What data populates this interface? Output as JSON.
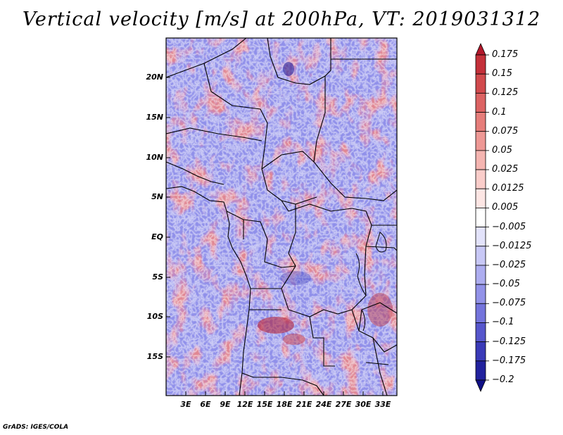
{
  "title": "Vertical velocity [m/s] at 200hPa, VT: 2019031312",
  "footer": "GrADS: IGES/COLA",
  "lat_labels": [
    "20N",
    "15N",
    "10N",
    "5N",
    "EQ",
    "5S",
    "10S",
    "15S"
  ],
  "lon_labels": [
    "3E",
    "6E",
    "9E",
    "12E",
    "15E",
    "18E",
    "21E",
    "24E",
    "27E",
    "30E",
    "33E"
  ],
  "colorbar": {
    "labels": [
      "0.175",
      "0.15",
      "0.125",
      "0.1",
      "0.075",
      "0.05",
      "0.025",
      "0.0125",
      "0.005",
      "−0.005",
      "−0.0125",
      "−0.025",
      "−0.05",
      "−0.075",
      "−0.1",
      "−0.125",
      "−0.175",
      "−0.2"
    ],
    "colors": [
      "#b2182b",
      "#c4303a",
      "#d14a4d",
      "#dc6363",
      "#e67d7a",
      "#ee9895",
      "#f5b5b1",
      "#facdca",
      "#fde6e4",
      "#ffffff",
      "#e3e3fb",
      "#c8c8f6",
      "#adadf0",
      "#9292e8",
      "#7474dc",
      "#5656cc",
      "#3a3ab8",
      "#22229e",
      "#0f0f85"
    ]
  },
  "map": {
    "extent": {
      "lon": [
        0,
        35
      ],
      "lat": [
        -20,
        25
      ]
    },
    "field": "vertical velocity",
    "level": "200hPa",
    "valid_time": "2019031312"
  }
}
